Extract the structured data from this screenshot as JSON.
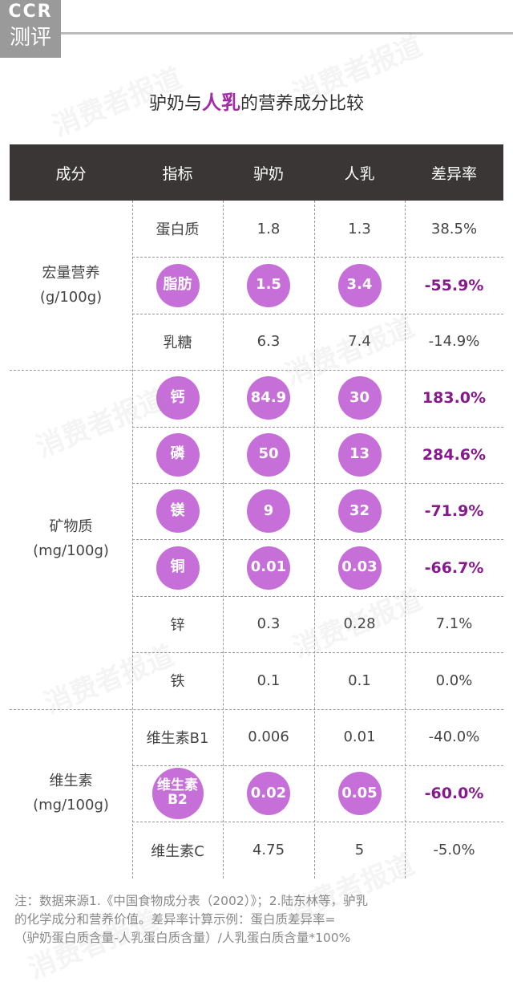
{
  "logo": {
    "top": "CCR",
    "bottom": "测评"
  },
  "watermark": "消费者报道",
  "title": {
    "before": "驴奶与",
    "highlight": "人乳",
    "after": "的营养成分比较"
  },
  "table": {
    "header": [
      "成分",
      "指标",
      "驴奶",
      "人乳",
      "差异率"
    ],
    "groups": [
      {
        "label": "宏量营养",
        "unit": "(g/100g)",
        "rows": [
          {
            "indicator": "蛋白质",
            "donkey": "1.8",
            "human": "1.3",
            "diff": "38.5%",
            "highlight": false
          },
          {
            "indicator": "脂肪",
            "donkey": "1.5",
            "human": "3.4",
            "diff": "-55.9%",
            "highlight": true
          },
          {
            "indicator": "乳糖",
            "donkey": "6.3",
            "human": "7.4",
            "diff": "-14.9%",
            "highlight": false
          }
        ]
      },
      {
        "label": "矿物质",
        "unit": "(mg/100g)",
        "rows": [
          {
            "indicator": "钙",
            "donkey": "84.9",
            "human": "30",
            "diff": "183.0%",
            "highlight": true
          },
          {
            "indicator": "磷",
            "donkey": "50",
            "human": "13",
            "diff": "284.6%",
            "highlight": true
          },
          {
            "indicator": "镁",
            "donkey": "9",
            "human": "32",
            "diff": "-71.9%",
            "highlight": true
          },
          {
            "indicator": "铜",
            "donkey": "0.01",
            "human": "0.03",
            "diff": "-66.7%",
            "highlight": true
          },
          {
            "indicator": "锌",
            "donkey": "0.3",
            "human": "0.28",
            "diff": "7.1%",
            "highlight": false
          },
          {
            "indicator": "铁",
            "donkey": "0.1",
            "human": "0.1",
            "diff": "0.0%",
            "highlight": false
          }
        ]
      },
      {
        "label": "维生素",
        "unit": "(mg/100g)",
        "rows": [
          {
            "indicator": "维生素B1",
            "donkey": "0.006",
            "human": "0.01",
            "diff": "-40.0%",
            "highlight": false
          },
          {
            "indicator": "维生素B2",
            "donkey": "0.02",
            "human": "0.05",
            "diff": "-60.0%",
            "highlight": true
          },
          {
            "indicator": "维生素C",
            "donkey": "4.75",
            "human": "5",
            "diff": "-5.0%",
            "highlight": false
          }
        ]
      }
    ]
  },
  "footnote": [
    "注：数据来源1.《中国食物成分表（2002）》；2.陆东林等，驴乳",
    "的化学成分和营养价值。差异率计算示例：蛋白质差异率=",
    "（驴奶蛋白质含量-人乳蛋白质含量）/人乳蛋白质含量*100%"
  ]
}
